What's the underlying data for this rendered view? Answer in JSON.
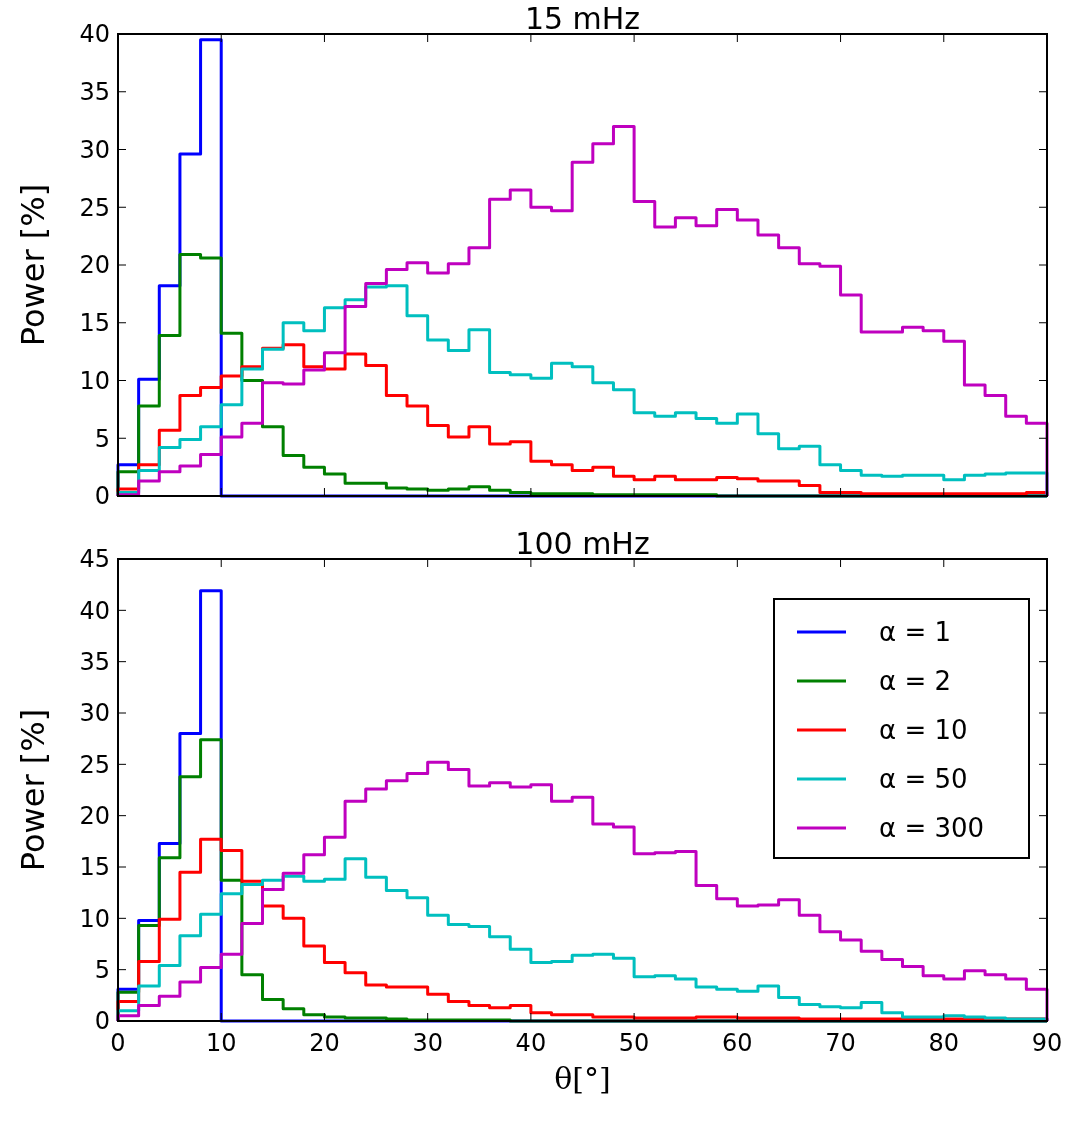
{
  "chart_data": [
    {
      "type": "histogram",
      "title": "15 mHz",
      "ylabel": "Power [%]",
      "bins": [
        0,
        2,
        4,
        6,
        8,
        10,
        12,
        14,
        16,
        18,
        20,
        22,
        24,
        26,
        28,
        30,
        32,
        34,
        36,
        38,
        40,
        42,
        44,
        46,
        48,
        50,
        52,
        54,
        56,
        58,
        60,
        62,
        64,
        66,
        68,
        70,
        72,
        74,
        76,
        78,
        80,
        82,
        84,
        86,
        88,
        90
      ],
      "xlim": [
        0,
        90
      ],
      "xticks": [
        0,
        10,
        20,
        30,
        40,
        50,
        60,
        70,
        80,
        90
      ],
      "ylim": [
        0,
        40
      ],
      "yticks": [
        0,
        5,
        10,
        15,
        20,
        25,
        30,
        35,
        40
      ],
      "tick_labels": "y",
      "grid": false,
      "legend": false,
      "series": [
        {
          "color": "#0000ff",
          "values": [
            2.7,
            10.1,
            18.2,
            29.6,
            39.5,
            0,
            0,
            0,
            0,
            0,
            0,
            0,
            0,
            0,
            0,
            0,
            0,
            0,
            0,
            0,
            0,
            0,
            0,
            0,
            0,
            0,
            0,
            0,
            0,
            0,
            0,
            0,
            0,
            0,
            0,
            0,
            0,
            0,
            0,
            0,
            0,
            0,
            0,
            0,
            0
          ]
        },
        {
          "color": "#008000",
          "values": [
            2.1,
            7.8,
            13.9,
            20.9,
            20.6,
            14.1,
            10.0,
            6.0,
            3.5,
            2.5,
            1.9,
            1.1,
            1.1,
            0.7,
            0.6,
            0.5,
            0.6,
            0.8,
            0.5,
            0.3,
            0.2,
            0.2,
            0.2,
            0.1,
            0.1,
            0.1,
            0.1,
            0.1,
            0.1,
            0,
            0,
            0,
            0,
            0,
            0,
            0,
            0,
            0,
            0,
            0,
            0,
            0,
            0,
            0,
            0
          ]
        },
        {
          "color": "#ff0000",
          "values": [
            0.6,
            2.7,
            5.7,
            8.7,
            9.4,
            10.4,
            11.2,
            12.8,
            13.1,
            11.2,
            11.0,
            12.3,
            11.3,
            8.7,
            7.8,
            6.1,
            5.1,
            6.0,
            4.5,
            4.7,
            3.0,
            2.7,
            2.2,
            2.5,
            1.7,
            1.4,
            1.7,
            1.4,
            1.4,
            1.6,
            1.5,
            1.3,
            1.3,
            0.9,
            0.3,
            0.3,
            0.2,
            0.2,
            0.2,
            0.2,
            0.2,
            0.2,
            0.2,
            0.2,
            0.3
          ]
        },
        {
          "color": "#00bfbf",
          "values": [
            0.3,
            2.2,
            4.2,
            4.9,
            6.0,
            7.9,
            11.0,
            12.7,
            15.0,
            14.3,
            16.3,
            17.0,
            18.1,
            18.2,
            15.6,
            13.5,
            12.6,
            14.4,
            10.7,
            10.5,
            10.2,
            11.5,
            11.2,
            9.8,
            9.2,
            7.2,
            6.9,
            7.2,
            6.7,
            6.3,
            7.1,
            5.4,
            4.1,
            4.3,
            2.7,
            2.2,
            1.8,
            1.7,
            1.8,
            1.8,
            1.4,
            1.8,
            1.9,
            2.0,
            2.0
          ]
        },
        {
          "color": "#bf00bf",
          "values": [
            0.1,
            1.3,
            2.1,
            2.6,
            3.6,
            5.1,
            6.3,
            9.8,
            9.7,
            10.9,
            12.4,
            16.4,
            18.4,
            19.6,
            20.2,
            19.3,
            20.1,
            21.5,
            25.7,
            26.5,
            25.0,
            24.7,
            28.9,
            30.5,
            32.0,
            25.5,
            23.3,
            24.1,
            23.4,
            24.8,
            23.9,
            22.6,
            21.5,
            20.1,
            19.9,
            17.4,
            14.2,
            14.2,
            14.6,
            14.3,
            13.4,
            9.6,
            8.7,
            6.9,
            6.3
          ]
        }
      ]
    },
    {
      "type": "histogram",
      "title": "100 mHz",
      "ylabel": "Power [%]",
      "xlabel": "θ[°]",
      "bins": [
        0,
        2,
        4,
        6,
        8,
        10,
        12,
        14,
        16,
        18,
        20,
        22,
        24,
        26,
        28,
        30,
        32,
        34,
        36,
        38,
        40,
        42,
        44,
        46,
        48,
        50,
        52,
        54,
        56,
        58,
        60,
        62,
        64,
        66,
        68,
        70,
        72,
        74,
        76,
        78,
        80,
        82,
        84,
        86,
        88,
        90
      ],
      "xlim": [
        0,
        90
      ],
      "xticks": [
        0,
        10,
        20,
        30,
        40,
        50,
        60,
        70,
        80,
        90
      ],
      "ylim": [
        0,
        45
      ],
      "yticks": [
        0,
        5,
        10,
        15,
        20,
        25,
        30,
        35,
        40,
        45
      ],
      "grid": false,
      "legend": "top right",
      "series": [
        {
          "name": "α = 1",
          "color": "#0000ff",
          "values": [
            3.1,
            9.8,
            17.3,
            28.0,
            41.9,
            0,
            0,
            0,
            0,
            0,
            0,
            0,
            0,
            0,
            0,
            0,
            0,
            0,
            0,
            0,
            0,
            0,
            0,
            0,
            0,
            0,
            0,
            0,
            0,
            0,
            0,
            0,
            0,
            0,
            0,
            0,
            0,
            0,
            0,
            0,
            0,
            0,
            0,
            0,
            0
          ]
        },
        {
          "name": "α = 2",
          "color": "#008000",
          "values": [
            2.8,
            9.3,
            15.9,
            23.8,
            27.4,
            13.7,
            4.5,
            2.1,
            1.2,
            0.6,
            0.4,
            0.3,
            0.3,
            0.2,
            0.1,
            0.1,
            0.1,
            0.1,
            0.1,
            0,
            0,
            0,
            0,
            0,
            0,
            0,
            0,
            0,
            0,
            0,
            0,
            0,
            0,
            0,
            0,
            0,
            0,
            0,
            0,
            0,
            0,
            0,
            0,
            0,
            0
          ]
        },
        {
          "name": "α = 10",
          "color": "#ff0000",
          "values": [
            1.9,
            5.8,
            9.9,
            14.5,
            17.7,
            16.6,
            13.6,
            11.2,
            10.0,
            7.3,
            5.7,
            4.7,
            3.5,
            3.3,
            3.3,
            2.6,
            1.9,
            1.5,
            1.3,
            1.5,
            0.8,
            0.6,
            0.6,
            0.4,
            0.4,
            0.3,
            0.3,
            0.3,
            0.4,
            0.4,
            0.3,
            0.3,
            0.3,
            0.2,
            0.2,
            0.2,
            0.2,
            0.2,
            0.2,
            0.2,
            0.2,
            0.2,
            0.2,
            0.2,
            0.2
          ]
        },
        {
          "name": "α = 50",
          "color": "#00bfbf",
          "values": [
            1.0,
            3.4,
            5.4,
            8.3,
            10.4,
            12.4,
            13.3,
            13.7,
            14.1,
            13.6,
            13.8,
            15.8,
            14.0,
            12.7,
            12.0,
            10.3,
            9.4,
            9.2,
            8.2,
            7.0,
            5.7,
            5.8,
            6.4,
            6.5,
            6.1,
            4.3,
            4.4,
            4.1,
            3.3,
            3.1,
            2.9,
            3.4,
            2.3,
            1.6,
            1.4,
            1.3,
            1.8,
            0.8,
            0.4,
            0.4,
            0.5,
            0.4,
            0.3,
            0.2,
            0.2
          ]
        },
        {
          "name": "α = 300",
          "color": "#bf00bf",
          "values": [
            0.5,
            1.5,
            2.4,
            3.8,
            5.2,
            6.5,
            9.5,
            12.8,
            14.4,
            16.2,
            17.9,
            21.4,
            22.6,
            23.4,
            24.1,
            25.2,
            24.5,
            22.9,
            23.2,
            22.8,
            23.0,
            21.4,
            21.8,
            19.2,
            18.9,
            16.3,
            16.4,
            16.5,
            13.2,
            11.9,
            11.2,
            11.3,
            11.8,
            10.3,
            8.7,
            7.9,
            6.8,
            6.0,
            5.3,
            4.4,
            4.1,
            4.9,
            4.5,
            4.1,
            3.1
          ]
        }
      ]
    }
  ]
}
